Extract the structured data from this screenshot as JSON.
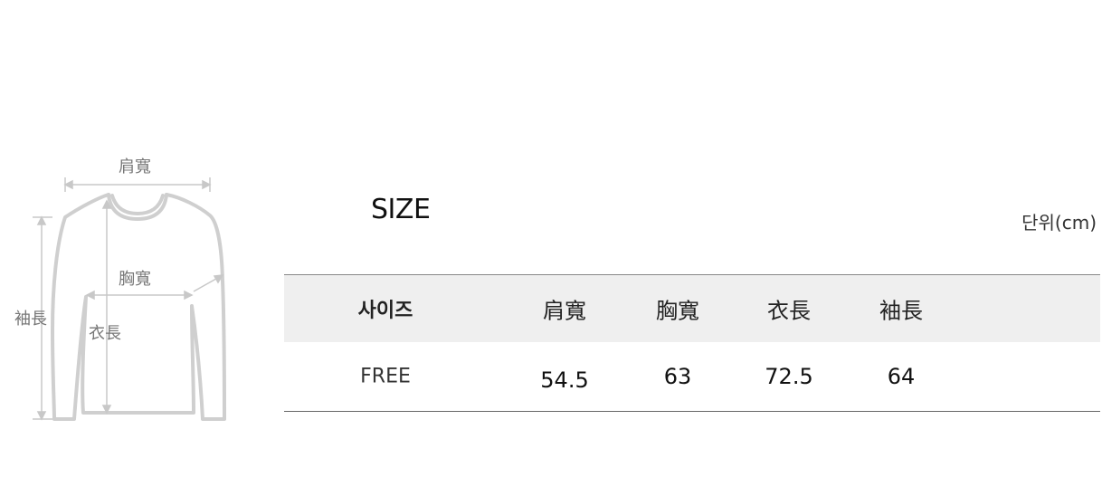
{
  "diagram": {
    "shoulder_label": "肩寬",
    "chest_label": "胸寬",
    "sleeve_label": "袖長",
    "length_label": "衣長"
  },
  "title": "SIZE",
  "unit": "단위(cm)",
  "table": {
    "headers": [
      "사이즈",
      "肩寬",
      "胸寬",
      "衣長",
      "袖長"
    ],
    "rows": [
      [
        "FREE",
        "54.5",
        "63",
        "72.5",
        "64"
      ]
    ]
  }
}
